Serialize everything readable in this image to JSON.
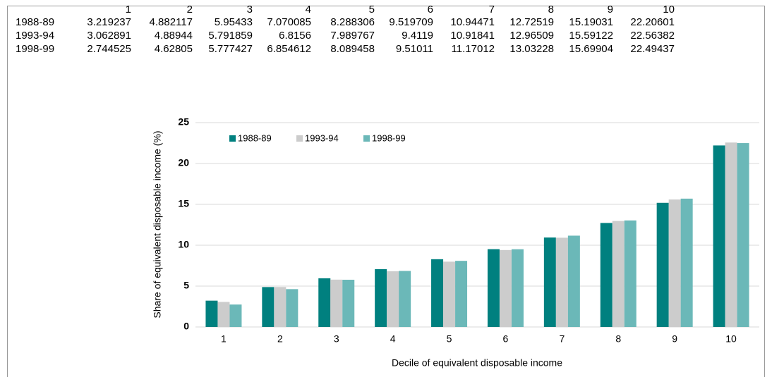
{
  "chart_data": {
    "type": "bar",
    "x_label": "Decile of equivalent disposable income",
    "y_label": "Share of equivalent disposable income (%)",
    "categories": [
      "1",
      "2",
      "3",
      "4",
      "5",
      "6",
      "7",
      "8",
      "9",
      "10"
    ],
    "series": [
      {
        "name": "1988-89",
        "color": "#00807f",
        "values": [
          3.219237,
          4.882117,
          5.95433,
          7.070085,
          8.288306,
          9.519709,
          10.94471,
          12.72519,
          15.19031,
          22.20601
        ]
      },
      {
        "name": "1993-94",
        "color": "#cccccc",
        "values": [
          3.062891,
          4.88944,
          5.791859,
          6.8156,
          7.989767,
          9.4119,
          10.91841,
          12.96509,
          15.59122,
          22.56382
        ]
      },
      {
        "name": "1998-99",
        "color": "#6bb8b8",
        "values": [
          2.744525,
          4.62805,
          5.777427,
          6.854612,
          8.089458,
          9.51011,
          11.17012,
          13.03228,
          15.69904,
          22.49437
        ]
      }
    ],
    "ylim": [
      0,
      25
    ],
    "yticks": [
      0,
      5,
      10,
      15,
      20,
      25
    ],
    "grid": true,
    "legend": "top-left"
  }
}
